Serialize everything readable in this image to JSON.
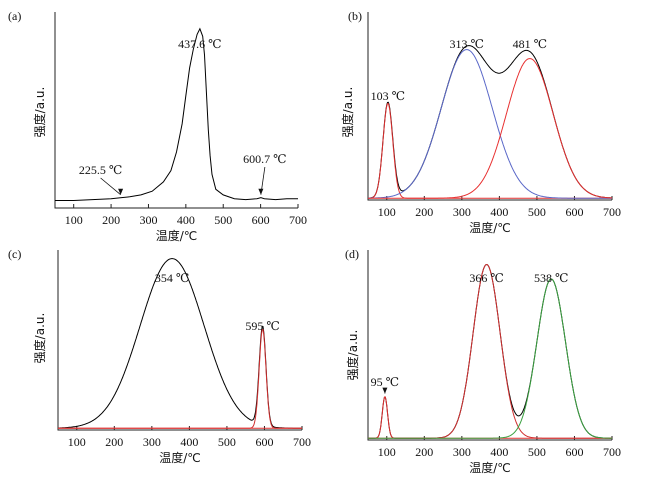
{
  "chart_data": [
    {
      "panel_label": "(a)",
      "type": "line",
      "xlabel": "温度/℃",
      "ylabel": "强度/a.u.",
      "xlim": [
        50,
        700
      ],
      "xticks": [
        100,
        200,
        300,
        400,
        500,
        600,
        700
      ],
      "ylim": [
        0,
        1.05
      ],
      "series": [
        {
          "color": "#000000",
          "points": [
            [
              50,
              0.04
            ],
            [
              100,
              0.04
            ],
            [
              150,
              0.045
            ],
            [
              200,
              0.05
            ],
            [
              225,
              0.055
            ],
            [
              250,
              0.06
            ],
            [
              280,
              0.07
            ],
            [
              310,
              0.09
            ],
            [
              340,
              0.14
            ],
            [
              360,
              0.2
            ],
            [
              375,
              0.3
            ],
            [
              390,
              0.45
            ],
            [
              400,
              0.6
            ],
            [
              410,
              0.75
            ],
            [
              420,
              0.85
            ],
            [
              430,
              0.93
            ],
            [
              437.6,
              0.96
            ],
            [
              445,
              0.92
            ],
            [
              450,
              0.82
            ],
            [
              455,
              0.62
            ],
            [
              460,
              0.42
            ],
            [
              465,
              0.28
            ],
            [
              470,
              0.18
            ],
            [
              480,
              0.1
            ],
            [
              500,
              0.07
            ],
            [
              530,
              0.05
            ],
            [
              560,
              0.045
            ],
            [
              590,
              0.05
            ],
            [
              600.7,
              0.055
            ],
            [
              610,
              0.05
            ],
            [
              640,
              0.045
            ],
            [
              670,
              0.05
            ],
            [
              700,
              0.05
            ]
          ]
        }
      ],
      "annotations": [
        {
          "text": "437.6 ℃",
          "x": 437.6,
          "y": 0.96
        },
        {
          "text": "225.5 ℃",
          "x": 225.5,
          "y": 0.055
        },
        {
          "text": "600.7 ℃",
          "x": 600.7,
          "y": 0.055
        }
      ]
    },
    {
      "panel_label": "(b)",
      "type": "line",
      "xlabel": "温度/℃",
      "ylabel": "强度/a.u.",
      "xlim": [
        50,
        700
      ],
      "xticks": [
        100,
        200,
        300,
        400,
        500,
        600,
        700
      ],
      "ylim": [
        0,
        1.05
      ],
      "peaks": [
        {
          "center": 103,
          "height": 0.53,
          "width": 13
        },
        {
          "center": 313,
          "height": 0.83,
          "width": 68
        },
        {
          "center": 481,
          "height": 0.78,
          "width": 62
        }
      ],
      "series": [
        {
          "component": "sum",
          "color": "#000000"
        },
        {
          "component": 0,
          "color": "#e03030"
        },
        {
          "component": 1,
          "color": "#5a68c8"
        },
        {
          "component": 2,
          "color": "#e83030"
        }
      ],
      "annotations": [
        {
          "text": "103 ℃",
          "x": 103
        },
        {
          "text": "313 ℃",
          "x": 313
        },
        {
          "text": "481 ℃",
          "x": 481
        }
      ]
    },
    {
      "panel_label": "(c)",
      "type": "line",
      "xlabel": "温度/℃",
      "ylabel": "强度/a.u.",
      "xlim": [
        50,
        700
      ],
      "xticks": [
        100,
        200,
        300,
        400,
        500,
        600,
        700
      ],
      "ylim": [
        0,
        1.05
      ],
      "peaks": [
        {
          "center": 354,
          "height": 0.99,
          "width": 85
        },
        {
          "center": 595,
          "height": 0.58,
          "width": 9
        }
      ],
      "series": [
        {
          "component": "sum",
          "color": "#000000"
        },
        {
          "component": 1,
          "color": "#d03030"
        },
        {
          "component": "baseline",
          "color": "#e03030"
        }
      ],
      "annotations": [
        {
          "text": "354 ℃",
          "x": 354
        },
        {
          "text": "595 ℃",
          "x": 595
        }
      ]
    },
    {
      "panel_label": "(d)",
      "type": "line",
      "xlabel": "温度/℃",
      "ylabel": "强度/a.u.",
      "xlim": [
        50,
        700
      ],
      "xticks": [
        100,
        200,
        300,
        400,
        500,
        600,
        700
      ],
      "ylim": [
        0,
        1.05
      ],
      "peaks": [
        {
          "center": 95,
          "height": 0.23,
          "width": 7
        },
        {
          "center": 366,
          "height": 0.96,
          "width": 36
        },
        {
          "center": 538,
          "height": 0.88,
          "width": 38
        }
      ],
      "series": [
        {
          "component": "sum",
          "color": "#000000"
        },
        {
          "component": 0,
          "color": "#e03030"
        },
        {
          "component": 1,
          "color": "#d03030"
        },
        {
          "component": 2,
          "color": "#3aa040"
        }
      ],
      "annotations": [
        {
          "text": "95 ℃",
          "x": 95
        },
        {
          "text": "366 ℃",
          "x": 366
        },
        {
          "text": "538 ℃",
          "x": 538
        }
      ]
    }
  ]
}
